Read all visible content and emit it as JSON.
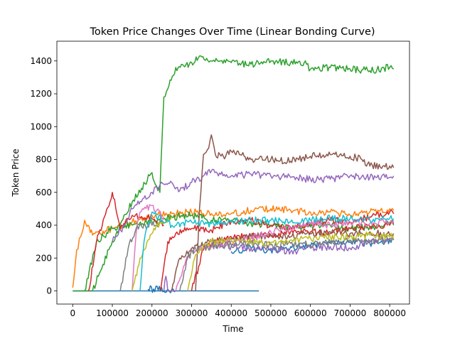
{
  "chart_data": {
    "type": "line",
    "title": "Token Price Changes Over Time (Linear Bonding Curve)",
    "xlabel": "Time",
    "ylabel": "Token Price",
    "xlim": [
      -40000,
      850000
    ],
    "ylim": [
      -80,
      1520
    ],
    "xticks": [
      0,
      100000,
      200000,
      300000,
      400000,
      500000,
      600000,
      700000,
      800000
    ],
    "yticks": [
      0,
      200,
      400,
      600,
      800,
      1000,
      1200,
      1400
    ],
    "grid": false,
    "legend": "none",
    "series": [
      {
        "color": "#1f77b4",
        "x": [
          0,
          470000
        ],
        "y": [
          0,
          0
        ]
      },
      {
        "color": "#1f77b4",
        "x": [
          190000,
          250000,
          260000
        ],
        "y": [
          10,
          8,
          0
        ]
      },
      {
        "color": "#1f77b4",
        "x": [
          400000,
          450000,
          500000,
          550000,
          600000,
          650000,
          700000,
          750000,
          800000,
          810000
        ],
        "y": [
          240,
          260,
          250,
          270,
          270,
          290,
          300,
          290,
          310,
          320
        ]
      },
      {
        "color": "#ff7f0e",
        "x": [
          0,
          10000,
          20000,
          30000,
          50000,
          100000,
          150000,
          200000,
          250000,
          300000,
          350000,
          400000,
          450000,
          500000,
          550000,
          600000,
          650000,
          700000,
          750000,
          800000,
          810000
        ],
        "y": [
          20,
          250,
          330,
          430,
          340,
          380,
          420,
          460,
          470,
          480,
          470,
          470,
          490,
          500,
          490,
          480,
          480,
          460,
          480,
          500,
          490
        ]
      },
      {
        "color": "#2ca02c",
        "x": [
          0,
          50000,
          100000,
          150000,
          200000,
          220000,
          225000,
          230000,
          240000,
          260000,
          280000,
          300000,
          320000,
          350000,
          400000,
          450000,
          500000,
          550000,
          590000,
          600000,
          650000,
          700000,
          750000,
          800000,
          810000
        ],
        "y": [
          0,
          0,
          300,
          540,
          720,
          600,
          900,
          1180,
          1230,
          1360,
          1370,
          1390,
          1430,
          1400,
          1390,
          1380,
          1400,
          1390,
          1380,
          1350,
          1360,
          1350,
          1340,
          1360,
          1350
        ]
      },
      {
        "color": "#2ca02c",
        "x": [
          30000,
          60000,
          100000,
          150000,
          200000,
          250000,
          300000,
          350000,
          400000,
          450000,
          500000,
          550000,
          600000,
          650000,
          700000,
          750000,
          800000,
          810000
        ],
        "y": [
          0,
          300,
          380,
          400,
          420,
          450,
          460,
          430,
          430,
          410,
          400,
          380,
          390,
          400,
          380,
          390,
          410,
          400
        ]
      },
      {
        "color": "#d62728",
        "x": [
          40000,
          60000,
          80000,
          100000,
          120000,
          150000,
          200000,
          230000
        ],
        "y": [
          0,
          300,
          450,
          600,
          380,
          460,
          440,
          400
        ]
      },
      {
        "color": "#d62728",
        "x": [
          220000,
          240000,
          260000,
          300000,
          350000,
          400000,
          450000,
          500000,
          550000,
          600000,
          650000,
          700000,
          750000,
          800000,
          810000
        ],
        "y": [
          0,
          300,
          350,
          380,
          370,
          420,
          430,
          400,
          390,
          410,
          430,
          420,
          450,
          480,
          470
        ]
      },
      {
        "color": "#d62728",
        "x": [
          300000,
          330000,
          360000,
          400000,
          450000,
          500000,
          550000,
          600000,
          650000,
          700000,
          750000,
          800000,
          810000
        ],
        "y": [
          0,
          250,
          300,
          330,
          330,
          340,
          360,
          360,
          350,
          380,
          390,
          400,
          410
        ]
      },
      {
        "color": "#9467bd",
        "x": [
          100000,
          130000,
          150000,
          200000,
          230000,
          250000,
          270000,
          300000,
          330000,
          350000,
          400000,
          450000,
          500000,
          550000,
          600000,
          650000,
          700000,
          750000,
          800000,
          810000
        ],
        "y": [
          300,
          400,
          500,
          600,
          650,
          660,
          610,
          660,
          700,
          730,
          700,
          710,
          700,
          690,
          680,
          680,
          700,
          690,
          690,
          700
        ]
      },
      {
        "color": "#9467bd",
        "x": [
          230000,
          235000,
          240000,
          260000
        ],
        "y": [
          0,
          90,
          0,
          0
        ]
      },
      {
        "color": "#9467bd",
        "x": [
          350000,
          400000,
          450000,
          500000,
          550000,
          600000,
          650000,
          700000,
          750000,
          800000,
          810000
        ],
        "y": [
          280,
          270,
          260,
          260,
          240,
          260,
          270,
          260,
          300,
          320,
          310
        ]
      },
      {
        "color": "#8c564b",
        "x": [
          310000,
          320000,
          330000,
          340000,
          350000,
          360000,
          380000,
          400000,
          450000,
          500000,
          550000,
          600000,
          650000,
          700000,
          730000,
          750000,
          800000,
          810000
        ],
        "y": [
          0,
          500,
          830,
          860,
          950,
          830,
          820,
          850,
          800,
          800,
          790,
          820,
          830,
          820,
          800,
          760,
          760,
          750
        ]
      },
      {
        "color": "#8c564b",
        "x": [
          250000,
          270000,
          300000,
          350000,
          400000,
          450000,
          500000,
          550000,
          600000,
          650000,
          700000,
          750000,
          800000,
          810000
        ],
        "y": [
          0,
          200,
          260,
          300,
          320,
          330,
          340,
          330,
          350,
          360,
          350,
          360,
          340,
          350
        ]
      },
      {
        "color": "#e377c2",
        "x": [
          260000,
          280000,
          300000,
          350000,
          400000,
          450000,
          500000,
          550000,
          600000,
          650000,
          700000,
          750000,
          800000,
          810000
        ],
        "y": [
          0,
          150,
          250,
          270,
          300,
          320,
          360,
          380,
          410,
          400,
          420,
          410,
          420,
          430
        ]
      },
      {
        "color": "#e377c2",
        "x": [
          150000,
          160000,
          170000,
          200000,
          230000
        ],
        "y": [
          0,
          350,
          480,
          520,
          450
        ]
      },
      {
        "color": "#7f7f7f",
        "x": [
          120000,
          140000,
          160000,
          200000,
          230000
        ],
        "y": [
          0,
          260,
          380,
          400,
          420
        ]
      },
      {
        "color": "#7f7f7f",
        "x": [
          270000,
          290000,
          310000,
          350000,
          400000,
          450000,
          500000,
          550000,
          600000,
          650000,
          700000,
          750000,
          800000,
          810000
        ],
        "y": [
          0,
          200,
          260,
          270,
          280,
          290,
          280,
          290,
          280,
          300,
          310,
          300,
          320,
          310
        ]
      },
      {
        "color": "#bcbd22",
        "x": [
          150000,
          170000,
          190000,
          220000,
          250000
        ],
        "y": [
          0,
          200,
          310,
          420,
          450
        ]
      },
      {
        "color": "#bcbd22",
        "x": [
          290000,
          310000,
          330000,
          350000,
          400000,
          450000,
          500000,
          550000,
          600000,
          650000,
          700000,
          750000,
          800000,
          810000
        ],
        "y": [
          0,
          220,
          280,
          300,
          310,
          300,
          290,
          310,
          320,
          330,
          330,
          340,
          330,
          340
        ]
      },
      {
        "color": "#17becf",
        "x": [
          170000,
          180000,
          190000,
          200000,
          250000,
          300000,
          350000,
          400000,
          450000,
          500000,
          550000,
          600000,
          650000,
          700000,
          750000,
          800000,
          810000
        ],
        "y": [
          0,
          300,
          400,
          480,
          400,
          420,
          410,
          420,
          430,
          430,
          420,
          430,
          440,
          440,
          430,
          440,
          440
        ]
      }
    ]
  }
}
